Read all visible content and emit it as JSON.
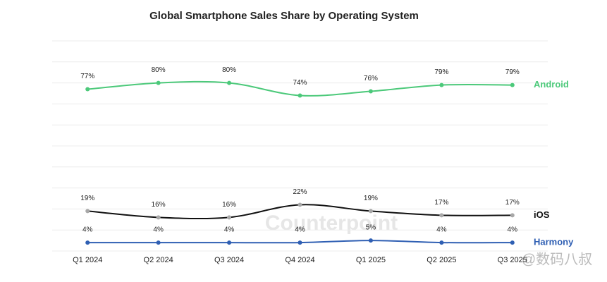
{
  "chart_data": {
    "type": "line",
    "title": "Global Smartphone Sales Share by Operating System",
    "categories": [
      "Q1 2024",
      "Q2 2024",
      "Q3 2024",
      "Q4 2024",
      "Q1 2025",
      "Q2 2025",
      "Q3 2025"
    ],
    "series": [
      {
        "name": "Android",
        "color": "#4cc97a",
        "marker_color": "#4cc97a",
        "values": [
          77,
          80,
          80,
          74,
          76,
          79,
          79
        ],
        "value_labels": [
          "77%",
          "80%",
          "80%",
          "74%",
          "76%",
          "79%",
          "79%"
        ]
      },
      {
        "name": "iOS",
        "color": "#111111",
        "marker_color": "#a8a8a8",
        "values": [
          19,
          16,
          16,
          22,
          19,
          17,
          17
        ],
        "value_labels": [
          "19%",
          "16%",
          "16%",
          "22%",
          "19%",
          "17%",
          "17%"
        ]
      },
      {
        "name": "Harmony",
        "color": "#2f5fb3",
        "marker_color": "#2f5fb3",
        "values": [
          4,
          4,
          4,
          4,
          5,
          4,
          4
        ],
        "value_labels": [
          "4%",
          "4%",
          "4%",
          "4%",
          "5%",
          "4%",
          "4%"
        ]
      }
    ],
    "ylim": [
      0,
      100
    ],
    "yticks": [
      0,
      10,
      20,
      30,
      40,
      50,
      60,
      70,
      80,
      90,
      100
    ],
    "grid": true,
    "watermarks": [
      "Counterpoint",
      "@数码八叔"
    ]
  }
}
